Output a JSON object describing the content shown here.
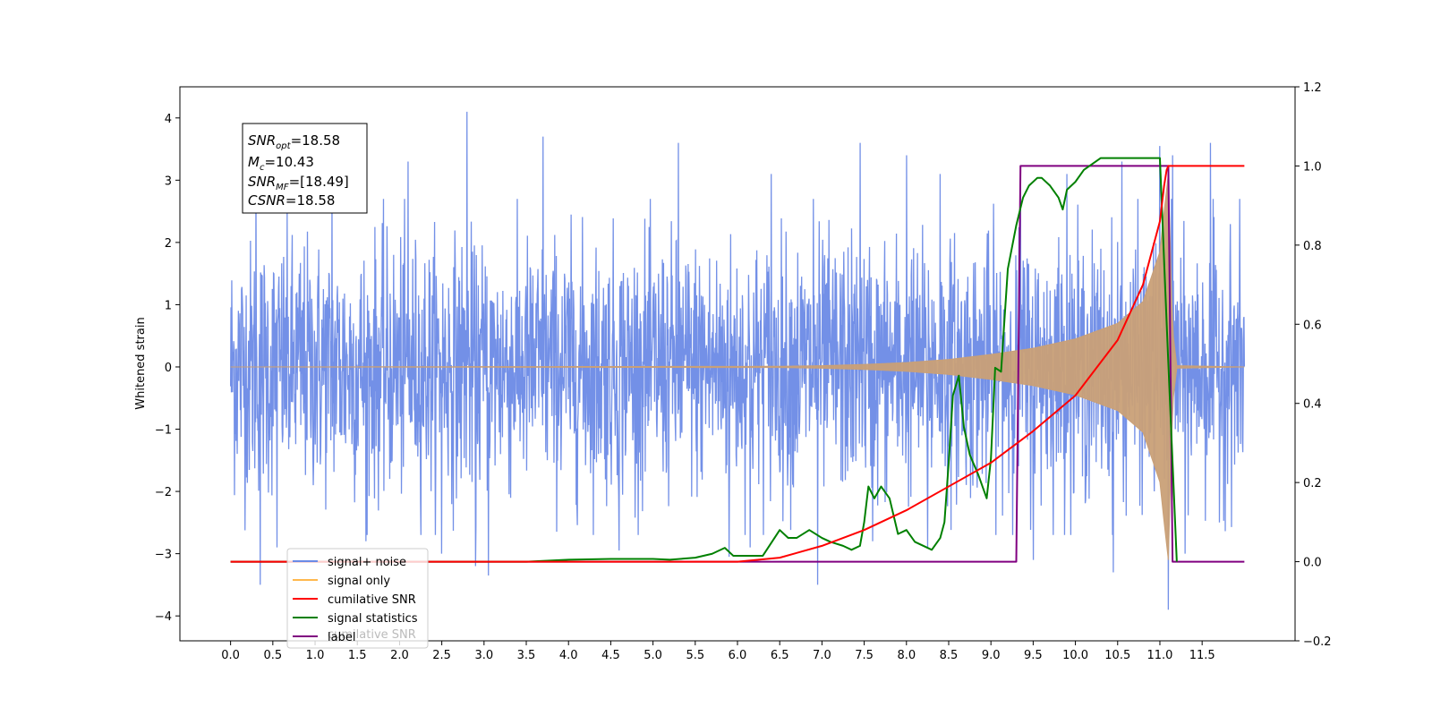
{
  "chart_data": {
    "type": "line",
    "ylabel": "Whitened strain",
    "x_ticks": [
      "0.0",
      "0.5",
      "1.0",
      "1.5",
      "2.0",
      "2.5",
      "3.0",
      "3.5",
      "4.0",
      "4.5",
      "5.0",
      "5.5",
      "6.0",
      "6.5",
      "7.0",
      "7.5",
      "8.0",
      "8.5",
      "9.0",
      "9.5",
      "10.0",
      "10.5",
      "11.0",
      "11.5"
    ],
    "y_left_ticks": [
      "4",
      "3",
      "2",
      "1",
      "0",
      "−1",
      "−2",
      "−3",
      "−4"
    ],
    "y_right_ticks": [
      "1.2",
      "1.0",
      "0.8",
      "0.6",
      "0.4",
      "0.2",
      "0.0",
      "−0.2"
    ],
    "xlim": [
      -0.6,
      12.6
    ],
    "ylim_left": [
      -4.4,
      4.5
    ],
    "ylim_right": [
      -0.2,
      1.2
    ],
    "grid": false,
    "legend_position": "lower-left",
    "legend": [
      {
        "label": "signal+ noise",
        "color": "#6b8ae6"
      },
      {
        "label": "signal only",
        "color": "#ffb84d"
      },
      {
        "label": "cumilative SNR",
        "color": "#ff0000"
      },
      {
        "label": "signal statistics",
        "color": "#008000"
      },
      {
        "label": "label",
        "color": "#800080"
      }
    ],
    "legend_ghost_text": "cumilative SNR",
    "annotation": {
      "lines": [
        {
          "main": "SNR",
          "sub": "opt",
          "value": "=18.58"
        },
        {
          "main": "M",
          "sub": "c",
          "value": "=10.43"
        },
        {
          "main": "SNR",
          "sub": "MF",
          "value": "=[18.49]"
        },
        {
          "main": "CSNR",
          "sub": "",
          "value": "=18.58"
        }
      ]
    },
    "series": [
      {
        "name": "signal+ noise",
        "axis": "left",
        "color": "#6b8ae6",
        "envelope_x": [
          0.0,
          12.0
        ],
        "typical_range": [
          -2.4,
          2.4
        ],
        "peak_x": [
          0.3,
          0.55,
          1.2,
          2.1,
          2.8,
          3.05,
          3.7,
          4.6,
          5.3,
          6.4,
          6.9,
          7.45,
          8.0,
          8.4,
          9.35,
          9.9,
          10.55,
          11.0,
          11.15,
          11.6
        ],
        "peak_y": [
          3.0,
          2.6,
          2.9,
          3.3,
          4.1,
          2.9,
          3.7,
          2.8,
          3.6,
          3.1,
          2.7,
          3.6,
          3.4,
          3.1,
          3.2,
          3.1,
          3.3,
          3.55,
          3.4,
          3.6
        ],
        "trough_x": [
          0.35,
          0.55,
          1.6,
          2.5,
          2.9,
          3.05,
          4.6,
          5.9,
          6.15,
          6.95,
          7.6,
          8.25,
          9.5,
          10.45,
          11.1,
          11.3
        ],
        "trough_y": [
          -3.5,
          -2.9,
          -2.8,
          -3.0,
          -3.2,
          -3.35,
          -2.95,
          -3.05,
          -2.9,
          -3.5,
          -2.8,
          -2.9,
          -3.1,
          -3.3,
          -3.9,
          -3.0
        ]
      },
      {
        "name": "signal only",
        "axis": "left",
        "color": "#c9a077",
        "x": [
          0.0,
          6.5,
          7.0,
          7.5,
          8.0,
          8.5,
          9.0,
          9.5,
          10.0,
          10.5,
          10.8,
          11.0,
          11.05,
          11.1,
          11.15,
          11.2,
          12.0
        ],
        "envelope": [
          0.0,
          0.01,
          0.02,
          0.04,
          0.07,
          0.12,
          0.2,
          0.3,
          0.45,
          0.7,
          1.05,
          1.85,
          2.5,
          3.1,
          0.6,
          0.02,
          0.0
        ]
      },
      {
        "name": "cumilative SNR",
        "axis": "right",
        "color": "#ff0000",
        "x": [
          0.0,
          6.0,
          6.5,
          7.0,
          7.5,
          8.0,
          8.5,
          9.0,
          9.5,
          10.0,
          10.5,
          10.8,
          11.0,
          11.05,
          11.08,
          11.1,
          11.2,
          11.5,
          12.0
        ],
        "values": [
          0.0,
          0.0,
          0.01,
          0.04,
          0.08,
          0.13,
          0.19,
          0.25,
          0.33,
          0.42,
          0.56,
          0.7,
          0.86,
          0.95,
          0.99,
          1.0,
          1.0,
          1.0,
          1.0
        ]
      },
      {
        "name": "signal statistics",
        "axis": "right",
        "color": "#008000",
        "x": [
          0.0,
          3.5,
          4.0,
          4.5,
          5.0,
          5.2,
          5.5,
          5.7,
          5.85,
          5.95,
          6.1,
          6.3,
          6.5,
          6.6,
          6.7,
          6.85,
          7.0,
          7.1,
          7.25,
          7.35,
          7.45,
          7.5,
          7.55,
          7.62,
          7.7,
          7.8,
          7.9,
          8.0,
          8.1,
          8.3,
          8.4,
          8.45,
          8.5,
          8.55,
          8.62,
          8.68,
          8.75,
          8.85,
          8.95,
          9.0,
          9.05,
          9.12,
          9.2,
          9.3,
          9.38,
          9.45,
          9.55,
          9.6,
          9.7,
          9.8,
          9.85,
          9.9,
          10.0,
          10.1,
          10.3,
          10.5,
          11.0,
          11.1,
          11.2
        ],
        "values": [
          0.0,
          0.0,
          0.005,
          0.007,
          0.007,
          0.005,
          0.01,
          0.02,
          0.035,
          0.015,
          0.015,
          0.015,
          0.08,
          0.06,
          0.06,
          0.08,
          0.06,
          0.05,
          0.04,
          0.03,
          0.04,
          0.1,
          0.19,
          0.16,
          0.19,
          0.16,
          0.07,
          0.08,
          0.05,
          0.03,
          0.06,
          0.1,
          0.25,
          0.42,
          0.47,
          0.34,
          0.27,
          0.22,
          0.16,
          0.26,
          0.49,
          0.48,
          0.74,
          0.85,
          0.92,
          0.95,
          0.97,
          0.97,
          0.95,
          0.92,
          0.89,
          0.94,
          0.96,
          0.99,
          1.02,
          1.02,
          1.02,
          0.5,
          0.0
        ]
      },
      {
        "name": "label",
        "axis": "right",
        "color": "#800080",
        "x": [
          0.0,
          9.3,
          9.35,
          11.1,
          11.15,
          12.0
        ],
        "values": [
          0.0,
          0.0,
          1.0,
          1.0,
          0.0,
          0.0
        ]
      }
    ]
  }
}
